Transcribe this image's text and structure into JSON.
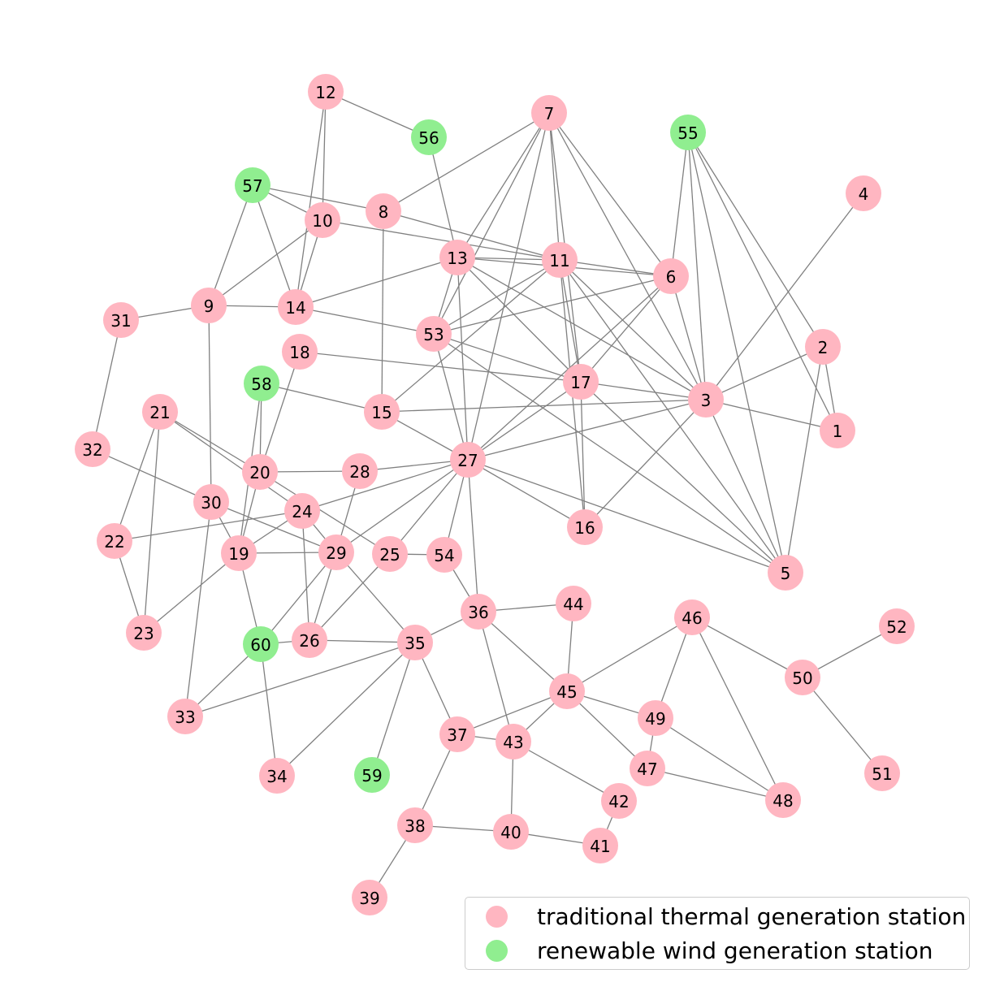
{
  "colors": {
    "thermal": "#ffb6c1",
    "wind": "#90ee90",
    "edge": "#808080"
  },
  "legend": {
    "items": [
      {
        "label": "traditional thermal generation station",
        "kind": "thermal"
      },
      {
        "label": "renewable wind generation station",
        "kind": "wind"
      }
    ]
  },
  "graph": {
    "nodes": [
      {
        "id": "1",
        "kind": "thermal"
      },
      {
        "id": "2",
        "kind": "thermal"
      },
      {
        "id": "3",
        "kind": "thermal"
      },
      {
        "id": "4",
        "kind": "thermal"
      },
      {
        "id": "5",
        "kind": "thermal"
      },
      {
        "id": "6",
        "kind": "thermal"
      },
      {
        "id": "7",
        "kind": "thermal"
      },
      {
        "id": "8",
        "kind": "thermal"
      },
      {
        "id": "9",
        "kind": "thermal"
      },
      {
        "id": "10",
        "kind": "thermal"
      },
      {
        "id": "11",
        "kind": "thermal"
      },
      {
        "id": "12",
        "kind": "thermal"
      },
      {
        "id": "13",
        "kind": "thermal"
      },
      {
        "id": "14",
        "kind": "thermal"
      },
      {
        "id": "15",
        "kind": "thermal"
      },
      {
        "id": "16",
        "kind": "thermal"
      },
      {
        "id": "17",
        "kind": "thermal"
      },
      {
        "id": "18",
        "kind": "thermal"
      },
      {
        "id": "19",
        "kind": "thermal"
      },
      {
        "id": "20",
        "kind": "thermal"
      },
      {
        "id": "21",
        "kind": "thermal"
      },
      {
        "id": "22",
        "kind": "thermal"
      },
      {
        "id": "23",
        "kind": "thermal"
      },
      {
        "id": "24",
        "kind": "thermal"
      },
      {
        "id": "25",
        "kind": "thermal"
      },
      {
        "id": "26",
        "kind": "thermal"
      },
      {
        "id": "27",
        "kind": "thermal"
      },
      {
        "id": "28",
        "kind": "thermal"
      },
      {
        "id": "29",
        "kind": "thermal"
      },
      {
        "id": "30",
        "kind": "thermal"
      },
      {
        "id": "31",
        "kind": "thermal"
      },
      {
        "id": "32",
        "kind": "thermal"
      },
      {
        "id": "33",
        "kind": "thermal"
      },
      {
        "id": "34",
        "kind": "thermal"
      },
      {
        "id": "35",
        "kind": "thermal"
      },
      {
        "id": "36",
        "kind": "thermal"
      },
      {
        "id": "37",
        "kind": "thermal"
      },
      {
        "id": "38",
        "kind": "thermal"
      },
      {
        "id": "39",
        "kind": "thermal"
      },
      {
        "id": "40",
        "kind": "thermal"
      },
      {
        "id": "41",
        "kind": "thermal"
      },
      {
        "id": "42",
        "kind": "thermal"
      },
      {
        "id": "43",
        "kind": "thermal"
      },
      {
        "id": "44",
        "kind": "thermal"
      },
      {
        "id": "45",
        "kind": "thermal"
      },
      {
        "id": "46",
        "kind": "thermal"
      },
      {
        "id": "47",
        "kind": "thermal"
      },
      {
        "id": "48",
        "kind": "thermal"
      },
      {
        "id": "49",
        "kind": "thermal"
      },
      {
        "id": "50",
        "kind": "thermal"
      },
      {
        "id": "51",
        "kind": "thermal"
      },
      {
        "id": "52",
        "kind": "thermal"
      },
      {
        "id": "53",
        "kind": "thermal"
      },
      {
        "id": "54",
        "kind": "thermal"
      },
      {
        "id": "55",
        "kind": "wind"
      },
      {
        "id": "56",
        "kind": "wind"
      },
      {
        "id": "57",
        "kind": "wind"
      },
      {
        "id": "58",
        "kind": "wind"
      },
      {
        "id": "59",
        "kind": "wind"
      },
      {
        "id": "60",
        "kind": "wind"
      }
    ],
    "edges": [
      [
        "12",
        "56"
      ],
      [
        "12",
        "10"
      ],
      [
        "12",
        "14"
      ],
      [
        "56",
        "13"
      ],
      [
        "57",
        "8"
      ],
      [
        "57",
        "10"
      ],
      [
        "57",
        "14"
      ],
      [
        "57",
        "9"
      ],
      [
        "10",
        "9"
      ],
      [
        "10",
        "14"
      ],
      [
        "10",
        "11"
      ],
      [
        "8",
        "11"
      ],
      [
        "8",
        "15"
      ],
      [
        "8",
        "7"
      ],
      [
        "7",
        "13"
      ],
      [
        "7",
        "53"
      ],
      [
        "7",
        "11"
      ],
      [
        "7",
        "27"
      ],
      [
        "7",
        "6"
      ],
      [
        "7",
        "3"
      ],
      [
        "7",
        "17"
      ],
      [
        "55",
        "6"
      ],
      [
        "55",
        "3"
      ],
      [
        "55",
        "5"
      ],
      [
        "55",
        "2"
      ],
      [
        "55",
        "1"
      ],
      [
        "4",
        "3"
      ],
      [
        "13",
        "11"
      ],
      [
        "13",
        "6"
      ],
      [
        "13",
        "14"
      ],
      [
        "13",
        "53"
      ],
      [
        "13",
        "27"
      ],
      [
        "13",
        "17"
      ],
      [
        "13",
        "3"
      ],
      [
        "11",
        "6"
      ],
      [
        "11",
        "53"
      ],
      [
        "11",
        "15"
      ],
      [
        "11",
        "17"
      ],
      [
        "11",
        "16"
      ],
      [
        "11",
        "3"
      ],
      [
        "11",
        "5"
      ],
      [
        "6",
        "53"
      ],
      [
        "6",
        "17"
      ],
      [
        "6",
        "27"
      ],
      [
        "6",
        "3"
      ],
      [
        "9",
        "14"
      ],
      [
        "9",
        "31"
      ],
      [
        "9",
        "30"
      ],
      [
        "14",
        "53"
      ],
      [
        "31",
        "32"
      ],
      [
        "53",
        "27"
      ],
      [
        "53",
        "17"
      ],
      [
        "53",
        "5"
      ],
      [
        "18",
        "17"
      ],
      [
        "18",
        "20"
      ],
      [
        "58",
        "15"
      ],
      [
        "58",
        "20"
      ],
      [
        "58",
        "19"
      ],
      [
        "15",
        "3"
      ],
      [
        "15",
        "27"
      ],
      [
        "17",
        "3"
      ],
      [
        "17",
        "16"
      ],
      [
        "17",
        "27"
      ],
      [
        "17",
        "5"
      ],
      [
        "3",
        "2"
      ],
      [
        "3",
        "1"
      ],
      [
        "3",
        "5"
      ],
      [
        "3",
        "27"
      ],
      [
        "3",
        "16"
      ],
      [
        "2",
        "1"
      ],
      [
        "2",
        "5"
      ],
      [
        "21",
        "20"
      ],
      [
        "21",
        "24"
      ],
      [
        "21",
        "22"
      ],
      [
        "21",
        "23"
      ],
      [
        "32",
        "30"
      ],
      [
        "20",
        "28"
      ],
      [
        "20",
        "19"
      ],
      [
        "20",
        "25"
      ],
      [
        "28",
        "27"
      ],
      [
        "28",
        "29"
      ],
      [
        "27",
        "16"
      ],
      [
        "27",
        "5"
      ],
      [
        "27",
        "24"
      ],
      [
        "27",
        "29"
      ],
      [
        "27",
        "25"
      ],
      [
        "27",
        "54"
      ],
      [
        "27",
        "36"
      ],
      [
        "30",
        "19"
      ],
      [
        "30",
        "29"
      ],
      [
        "30",
        "33"
      ],
      [
        "24",
        "22"
      ],
      [
        "24",
        "19"
      ],
      [
        "24",
        "26"
      ],
      [
        "24",
        "29"
      ],
      [
        "22",
        "23"
      ],
      [
        "19",
        "29"
      ],
      [
        "19",
        "23"
      ],
      [
        "19",
        "60"
      ],
      [
        "29",
        "26"
      ],
      [
        "29",
        "60"
      ],
      [
        "29",
        "35"
      ],
      [
        "25",
        "54"
      ],
      [
        "25",
        "26"
      ],
      [
        "54",
        "36"
      ],
      [
        "36",
        "44"
      ],
      [
        "36",
        "35"
      ],
      [
        "36",
        "45"
      ],
      [
        "36",
        "43"
      ],
      [
        "60",
        "26"
      ],
      [
        "60",
        "33"
      ],
      [
        "60",
        "34"
      ],
      [
        "26",
        "35"
      ],
      [
        "35",
        "33"
      ],
      [
        "35",
        "34"
      ],
      [
        "35",
        "59"
      ],
      [
        "35",
        "37"
      ],
      [
        "44",
        "45"
      ],
      [
        "46",
        "45"
      ],
      [
        "46",
        "49"
      ],
      [
        "46",
        "48"
      ],
      [
        "46",
        "50"
      ],
      [
        "52",
        "50"
      ],
      [
        "50",
        "51"
      ],
      [
        "45",
        "37"
      ],
      [
        "45",
        "43"
      ],
      [
        "45",
        "49"
      ],
      [
        "45",
        "47"
      ],
      [
        "49",
        "47"
      ],
      [
        "49",
        "48"
      ],
      [
        "47",
        "48"
      ],
      [
        "37",
        "43"
      ],
      [
        "37",
        "38"
      ],
      [
        "43",
        "40"
      ],
      [
        "43",
        "42"
      ],
      [
        "42",
        "41"
      ],
      [
        "38",
        "40"
      ],
      [
        "38",
        "39"
      ],
      [
        "40",
        "41"
      ]
    ]
  }
}
